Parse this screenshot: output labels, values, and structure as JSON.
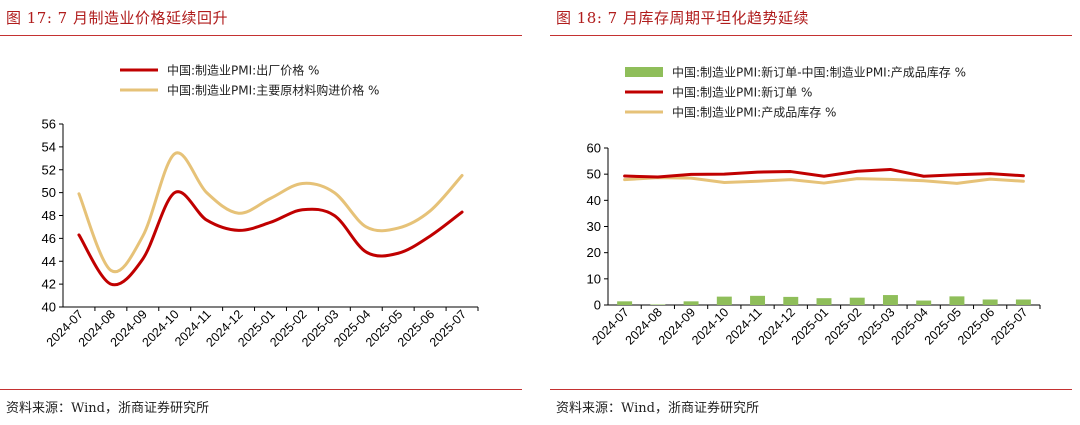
{
  "figures": [
    {
      "title": "图 17:   7 月制造业价格延续回升",
      "source": "资料来源：Wind，浙商证券研究所"
    },
    {
      "title": "图 18:   7 月库存周期平坦化趋势延续",
      "source": "资料来源：Wind，浙商证券研究所"
    }
  ],
  "chart_data": [
    {
      "type": "line",
      "title": "",
      "xlabel": "",
      "ylabel": "",
      "categories": [
        "2024-07",
        "2024-08",
        "2024-09",
        "2024-10",
        "2024-11",
        "2024-12",
        "2025-01",
        "2025-02",
        "2025-03",
        "2025-04",
        "2025-05",
        "2025-06",
        "2025-07"
      ],
      "series": [
        {
          "name": "中国:制造业PMI:出厂价格 %",
          "color": "#c00000",
          "values": [
            46.3,
            42.0,
            44.2,
            50.0,
            47.6,
            46.7,
            47.4,
            48.5,
            48.0,
            44.8,
            44.7,
            46.2,
            48.3
          ]
        },
        {
          "name": "中国:制造业PMI:主要原材料购进价格 %",
          "color": "#e6c278",
          "values": [
            49.9,
            43.2,
            46.2,
            53.4,
            50.0,
            48.2,
            49.5,
            50.8,
            50.0,
            47.0,
            46.9,
            48.4,
            51.5
          ]
        }
      ],
      "ylim": [
        40,
        56
      ],
      "yticks": [
        "40",
        "42",
        "44",
        "46",
        "48",
        "50",
        "52",
        "54",
        "56"
      ],
      "legend": "top"
    },
    {
      "type": "bar+line",
      "title": "",
      "xlabel": "",
      "ylabel": "",
      "categories": [
        "2024-07",
        "2024-08",
        "2024-09",
        "2024-10",
        "2024-11",
        "2024-12",
        "2025-01",
        "2025-02",
        "2025-03",
        "2025-04",
        "2025-05",
        "2025-06",
        "2025-07"
      ],
      "series": [
        {
          "name": "中国:制造业PMI:新订单-中国:制造业PMI:产成品库存 %",
          "kind": "bar",
          "color": "#8fbe5a",
          "values": [
            1.4,
            0.2,
            1.4,
            3.2,
            3.5,
            3.1,
            2.6,
            2.8,
            3.8,
            1.7,
            3.3,
            2.1,
            2.1
          ]
        },
        {
          "name": "中国:制造业PMI:新订单 %",
          "kind": "line",
          "color": "#c00000",
          "values": [
            49.3,
            48.9,
            49.9,
            50.0,
            50.8,
            51.0,
            49.2,
            51.1,
            51.8,
            49.2,
            49.8,
            50.2,
            49.4
          ]
        },
        {
          "name": "中国:制造业PMI:产成品库存 %",
          "kind": "line",
          "color": "#e6c278",
          "values": [
            47.9,
            48.7,
            48.5,
            46.8,
            47.3,
            47.9,
            46.6,
            48.3,
            48.0,
            47.5,
            46.5,
            48.1,
            47.3
          ]
        }
      ],
      "ylim": [
        0,
        60
      ],
      "yticks": [
        "0",
        "10",
        "20",
        "30",
        "40",
        "50",
        "60"
      ],
      "legend": "top"
    }
  ]
}
